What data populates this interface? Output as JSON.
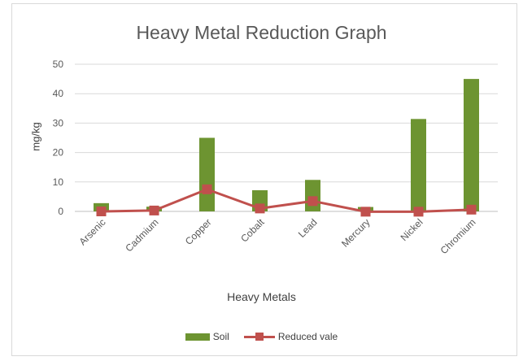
{
  "chart_data": {
    "type": "bar",
    "title": "Heavy Metal Reduction Graph",
    "xlabel": "Heavy Metals",
    "ylabel": "mg/kg",
    "ylim": [
      0,
      50
    ],
    "yticks": [
      0,
      10,
      20,
      30,
      40,
      50
    ],
    "categories": [
      "Arsenic",
      "Cadmium",
      "Copper",
      "Cobalt",
      "Lead",
      "Mercury",
      "Nickel",
      "Chromium"
    ],
    "series": [
      {
        "name": "Soil",
        "type": "bar",
        "color": "#6d9431",
        "values": [
          2.8,
          1.6,
          25,
          7.2,
          10.7,
          1.5,
          31.4,
          45
        ]
      },
      {
        "name": "Reduced vale",
        "type": "line",
        "color": "#c0504d",
        "values": [
          0,
          0.3,
          7.5,
          1,
          3.5,
          -0.1,
          -0.1,
          0.6
        ]
      }
    ],
    "grid": true,
    "legend_position": "bottom"
  }
}
